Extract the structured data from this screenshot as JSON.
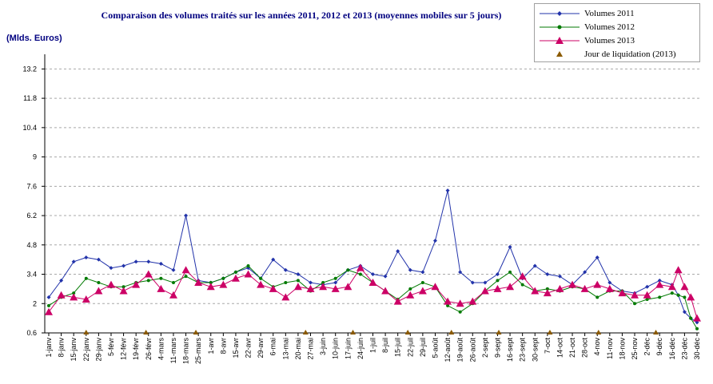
{
  "chart_data": {
    "type": "line",
    "title": "Comparaison des volumes traités sur les années 2011, 2012 et 2013 (moyennes mobiles sur 5 jours)",
    "ylabel": "(Mlds. Euros)",
    "ylim": [
      0.6,
      13.9
    ],
    "yticks": [
      "0.6",
      "2",
      "3.4",
      "4.8",
      "6.2",
      "7.6",
      "9",
      "10.4",
      "11.8",
      "13.2"
    ],
    "grid": true,
    "legend_position": "top-right",
    "categories": [
      "1-janv",
      "8-janv",
      "15-janv",
      "22-janv",
      "29-janv",
      "5-févr",
      "12-févr",
      "19-févr",
      "26-févr",
      "4-mars",
      "11-mars",
      "18-mars",
      "25-mars",
      "1-avr",
      "8-avr",
      "15-avr",
      "22-avr",
      "29-avr",
      "6-mai",
      "13-mai",
      "20-mai",
      "27-mai",
      "3-juin",
      "10-juin",
      "17-juin",
      "24-juin",
      "1-juil",
      "8-juil",
      "15-juil",
      "22-juil",
      "29-juil",
      "5-août",
      "12-août",
      "19-août",
      "26-août",
      "2-sept",
      "9-sept",
      "16-sept",
      "23-sept",
      "30-sept",
      "7-oct",
      "14-oct",
      "21-oct",
      "28-oct",
      "4-nov",
      "11-nov",
      "18-nov",
      "25-nov",
      "2-déc",
      "9-déc",
      "16-déc",
      "23-déc",
      "30-déc"
    ],
    "series": [
      {
        "name": "Volumes 2011",
        "color": "#2233aa",
        "marker": "diamond",
        "x": [
          0,
          1,
          2,
          3,
          4,
          5,
          6,
          7,
          8,
          9,
          10,
          11,
          12,
          13,
          14,
          15,
          16,
          17,
          18,
          19,
          20,
          21,
          22,
          23,
          24,
          25,
          26,
          27,
          28,
          29,
          30,
          31,
          32,
          33,
          34,
          35,
          36,
          37,
          38,
          39,
          40,
          41,
          42,
          43,
          44,
          45,
          46,
          47,
          48,
          49,
          50,
          50.5,
          51,
          51.5,
          52
        ],
        "values": [
          2.3,
          3.1,
          4.0,
          4.2,
          4.1,
          3.7,
          3.8,
          4.0,
          4.0,
          3.9,
          3.6,
          6.2,
          3.1,
          3.0,
          3.2,
          3.5,
          3.7,
          3.2,
          4.1,
          3.6,
          3.4,
          3.0,
          2.9,
          3.0,
          3.6,
          3.8,
          3.4,
          3.3,
          4.5,
          3.6,
          3.5,
          5.0,
          7.4,
          3.5,
          3.0,
          3.0,
          3.4,
          4.7,
          3.2,
          3.8,
          3.4,
          3.3,
          2.9,
          3.5,
          4.2,
          3.0,
          2.6,
          2.5,
          2.8,
          3.1,
          2.9,
          2.4,
          1.6,
          1.3,
          1.1
        ]
      },
      {
        "name": "Volumes 2012",
        "color": "#007a00",
        "marker": "circle",
        "x": [
          0,
          1,
          2,
          3,
          4,
          5,
          6,
          7,
          8,
          9,
          10,
          11,
          12,
          13,
          14,
          15,
          16,
          17,
          18,
          19,
          20,
          21,
          22,
          23,
          24,
          25,
          26,
          27,
          28,
          29,
          30,
          31,
          32,
          33,
          34,
          35,
          36,
          37,
          38,
          39,
          40,
          41,
          42,
          43,
          44,
          45,
          46,
          47,
          48,
          49,
          50,
          50.5,
          51,
          51.5,
          52
        ],
        "values": [
          1.9,
          2.3,
          2.5,
          3.2,
          3.0,
          2.8,
          2.8,
          3.0,
          3.1,
          3.2,
          3.0,
          3.3,
          3.0,
          3.0,
          3.2,
          3.5,
          3.8,
          3.2,
          2.8,
          3.0,
          3.1,
          2.6,
          3.0,
          3.2,
          3.6,
          3.4,
          3.0,
          2.6,
          2.2,
          2.7,
          3.0,
          2.8,
          1.9,
          1.6,
          2.0,
          2.6,
          3.1,
          3.5,
          2.9,
          2.6,
          2.7,
          2.6,
          2.8,
          2.7,
          2.3,
          2.6,
          2.6,
          2.0,
          2.2,
          2.3,
          2.5,
          2.4,
          2.3,
          1.3,
          0.8
        ]
      },
      {
        "name": "Volumes 2013",
        "color": "#cc0066",
        "marker": "triangle",
        "x": [
          0,
          1,
          2,
          3,
          4,
          5,
          6,
          7,
          8,
          9,
          10,
          11,
          12,
          13,
          14,
          15,
          16,
          17,
          18,
          19,
          20,
          21,
          22,
          23,
          24,
          25,
          26,
          27,
          28,
          29,
          30,
          31,
          32,
          33,
          34,
          35,
          36,
          37,
          38,
          39,
          40,
          41,
          42,
          43,
          44,
          45,
          46,
          47,
          48,
          49,
          50,
          50.5,
          51,
          51.5,
          52
        ],
        "values": [
          1.6,
          2.4,
          2.3,
          2.2,
          2.6,
          2.9,
          2.6,
          2.9,
          3.4,
          2.7,
          2.4,
          3.6,
          3.0,
          2.8,
          2.9,
          3.2,
          3.4,
          2.9,
          2.7,
          2.3,
          2.8,
          2.7,
          2.8,
          2.7,
          2.8,
          3.7,
          3.0,
          2.6,
          2.1,
          2.4,
          2.6,
          2.8,
          2.1,
          2.0,
          2.1,
          2.6,
          2.7,
          2.8,
          3.3,
          2.6,
          2.5,
          2.7,
          2.9,
          2.7,
          2.9,
          2.7,
          2.5,
          2.4,
          2.4,
          2.9,
          2.8,
          3.6,
          2.8,
          2.3,
          1.3
        ]
      },
      {
        "name": "Jour de liquidation (2013)",
        "color": "#8b5a00",
        "marker": "triangle",
        "x": [
          3,
          7.8,
          11.8,
          20.6,
          24.4,
          28.8,
          32.3,
          36.1,
          40.2,
          44.1,
          48.7
        ],
        "values": [
          0.6,
          0.6,
          0.6,
          0.6,
          0.6,
          0.6,
          0.6,
          0.6,
          0.6,
          0.6,
          0.6
        ]
      }
    ]
  }
}
